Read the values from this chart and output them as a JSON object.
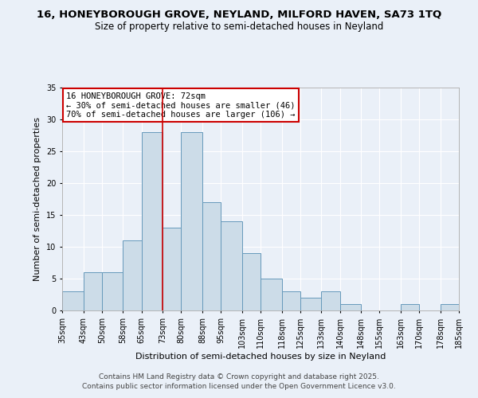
{
  "title_line1": "16, HONEYBOROUGH GROVE, NEYLAND, MILFORD HAVEN, SA73 1TQ",
  "title_line2": "Size of property relative to semi-detached houses in Neyland",
  "xlabel": "Distribution of semi-detached houses by size in Neyland",
  "ylabel": "Number of semi-detached properties",
  "annotation_title": "16 HONEYBOROUGH GROVE: 72sqm",
  "annotation_line2": "← 30% of semi-detached houses are smaller (46)",
  "annotation_line3": "70% of semi-detached houses are larger (106) →",
  "footer_line1": "Contains HM Land Registry data © Crown copyright and database right 2025.",
  "footer_line2": "Contains public sector information licensed under the Open Government Licence v3.0.",
  "property_size": 72,
  "bin_edges": [
    35,
    43,
    50,
    58,
    65,
    73,
    80,
    88,
    95,
    103,
    110,
    118,
    125,
    133,
    140,
    148,
    155,
    163,
    170,
    178,
    185
  ],
  "bin_labels": [
    "35sqm",
    "43sqm",
    "50sqm",
    "58sqm",
    "65sqm",
    "73sqm",
    "80sqm",
    "88sqm",
    "95sqm",
    "103sqm",
    "110sqm",
    "118sqm",
    "125sqm",
    "133sqm",
    "140sqm",
    "148sqm",
    "155sqm",
    "163sqm",
    "170sqm",
    "178sqm",
    "185sqm"
  ],
  "counts": [
    3,
    6,
    6,
    11,
    28,
    13,
    28,
    17,
    14,
    9,
    5,
    3,
    2,
    3,
    1,
    0,
    0,
    1,
    0,
    1
  ],
  "bar_color": "#ccdce8",
  "bar_edge_color": "#6699bb",
  "vline_color": "#cc0000",
  "vline_x": 73,
  "ylim": [
    0,
    35
  ],
  "yticks": [
    0,
    5,
    10,
    15,
    20,
    25,
    30,
    35
  ],
  "bg_color": "#eaf0f8",
  "plot_bg_color": "#eaf0f8",
  "grid_color": "#ffffff",
  "annotation_box_color": "#cc0000",
  "title_fontsize": 9.5,
  "subtitle_fontsize": 8.5,
  "axis_label_fontsize": 8,
  "tick_fontsize": 7,
  "annotation_fontsize": 7.5,
  "footer_fontsize": 6.5
}
